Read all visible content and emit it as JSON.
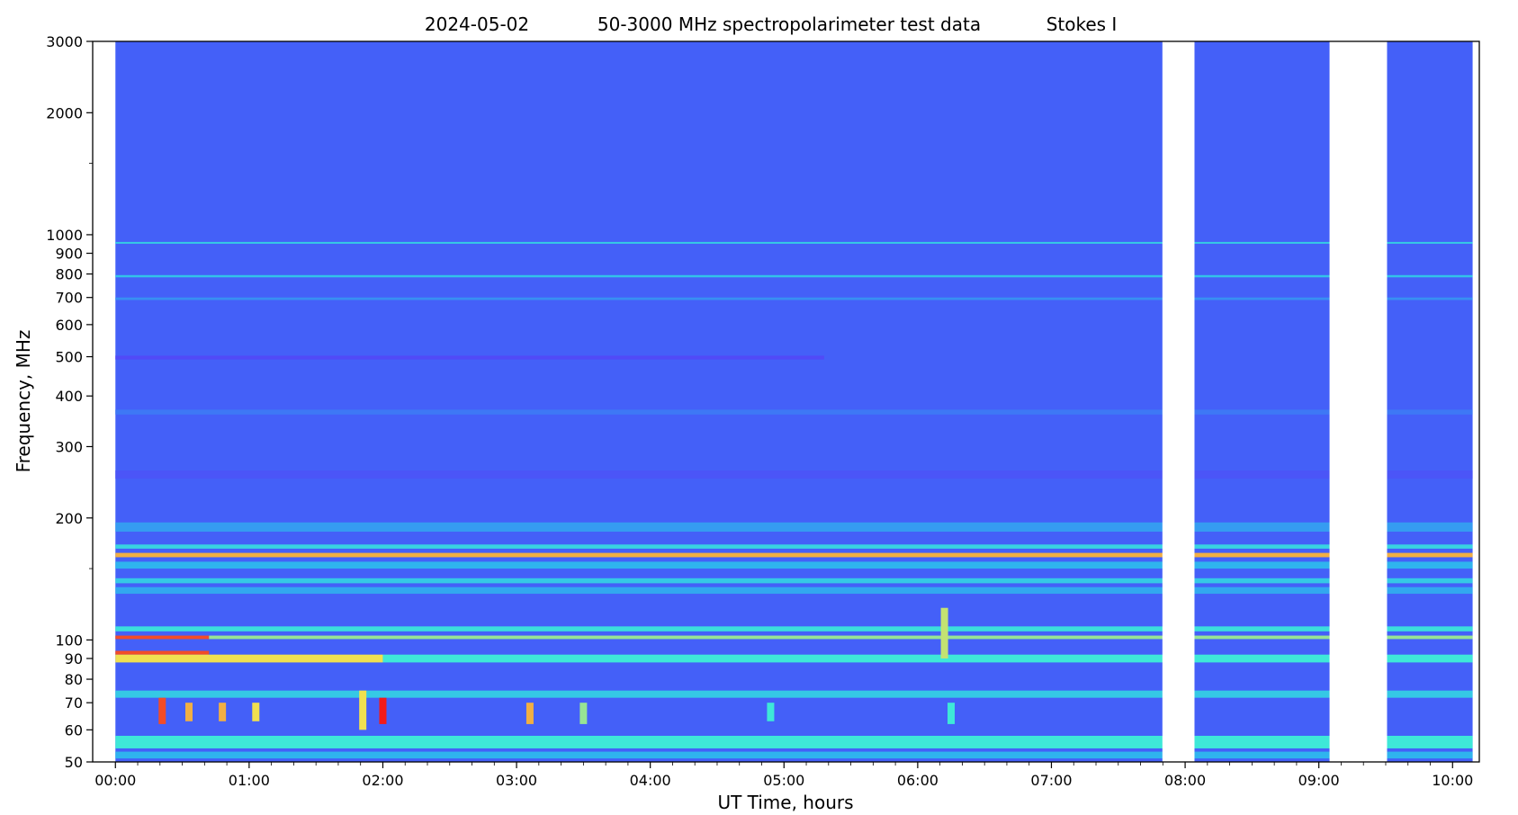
{
  "chart_data": {
    "type": "heatmap",
    "title_parts": [
      "2024-05-02",
      "50-3000 MHz spectropolarimeter test data",
      "Stokes I"
    ],
    "xlabel": "UT Time, hours",
    "ylabel": "Frequency, MHz",
    "x_range_hours": [
      -0.17,
      10.2
    ],
    "x_data_range_hours": [
      0.0,
      10.15
    ],
    "y_range_mhz": [
      50,
      3000
    ],
    "y_scale": "log",
    "x_ticks": [
      {
        "value": 0,
        "label": "00:00"
      },
      {
        "value": 1,
        "label": "01:00"
      },
      {
        "value": 2,
        "label": "02:00"
      },
      {
        "value": 3,
        "label": "03:00"
      },
      {
        "value": 4,
        "label": "04:00"
      },
      {
        "value": 5,
        "label": "05:00"
      },
      {
        "value": 6,
        "label": "06:00"
      },
      {
        "value": 7,
        "label": "07:00"
      },
      {
        "value": 8,
        "label": "08:00"
      },
      {
        "value": 9,
        "label": "09:00"
      },
      {
        "value": 10,
        "label": "10:00"
      }
    ],
    "y_ticks": [
      {
        "value": 50,
        "label": "50"
      },
      {
        "value": 60,
        "label": "60"
      },
      {
        "value": 70,
        "label": "70"
      },
      {
        "value": 80,
        "label": "80"
      },
      {
        "value": 90,
        "label": "90"
      },
      {
        "value": 100,
        "label": "100"
      },
      {
        "value": 200,
        "label": "200"
      },
      {
        "value": 300,
        "label": "300"
      },
      {
        "value": 400,
        "label": "400"
      },
      {
        "value": 500,
        "label": "500"
      },
      {
        "value": 600,
        "label": "600"
      },
      {
        "value": 700,
        "label": "700"
      },
      {
        "value": 800,
        "label": "800"
      },
      {
        "value": 900,
        "label": "900"
      },
      {
        "value": 1000,
        "label": "1000"
      },
      {
        "value": 2000,
        "label": "2000"
      },
      {
        "value": 3000,
        "label": "3000"
      }
    ],
    "y_minor_ticks": [
      150,
      1500
    ],
    "data_gaps_hours": [
      [
        7.83,
        8.07
      ],
      [
        9.08,
        9.51
      ]
    ],
    "colormap": "rainbow",
    "colors": {
      "background": "#4460f8",
      "low": "#5a3cf6",
      "mid": "#2fb4ee",
      "high_cyan": "#3ee8d8",
      "yellow": "#f0e050",
      "red": "#f21a1a"
    },
    "bands": [
      {
        "f_low": 950,
        "f_high": 960,
        "intensity": 0.45,
        "t_start": 0.0,
        "t_end": 10.15
      },
      {
        "f_low": 785,
        "f_high": 795,
        "intensity": 0.42,
        "t_start": 0.0,
        "t_end": 10.15
      },
      {
        "f_low": 690,
        "f_high": 700,
        "intensity": 0.2,
        "t_start": 0.0,
        "t_end": 10.15
      },
      {
        "f_low": 492,
        "f_high": 503,
        "intensity": -0.6,
        "t_start": 0.0,
        "t_end": 5.3
      },
      {
        "f_low": 360,
        "f_high": 370,
        "intensity": 0.1,
        "t_start": 0.0,
        "t_end": 10.15
      },
      {
        "f_low": 250,
        "f_high": 262,
        "intensity": -0.3,
        "t_start": 0.0,
        "t_end": 10.15
      },
      {
        "f_low": 185,
        "f_high": 195,
        "intensity": 0.25,
        "t_start": 0.0,
        "t_end": 10.15
      },
      {
        "f_low": 168,
        "f_high": 172,
        "intensity": 0.5,
        "t_start": 0.0,
        "t_end": 10.15
      },
      {
        "f_low": 160,
        "f_high": 164,
        "intensity": 0.85,
        "t_start": 0.0,
        "t_end": 10.15
      },
      {
        "f_low": 150,
        "f_high": 156,
        "intensity": 0.35,
        "t_start": 0.0,
        "t_end": 10.15
      },
      {
        "f_low": 138,
        "f_high": 142,
        "intensity": 0.45,
        "t_start": 0.0,
        "t_end": 10.15
      },
      {
        "f_low": 130,
        "f_high": 135,
        "intensity": 0.3,
        "t_start": 0.0,
        "t_end": 10.15
      },
      {
        "f_low": 105,
        "f_high": 108,
        "intensity": 0.55,
        "t_start": 0.0,
        "t_end": 10.15
      },
      {
        "f_low": 100.5,
        "f_high": 102.5,
        "intensity": 0.95,
        "t_start": 0.0,
        "t_end": 0.7
      },
      {
        "f_low": 100.5,
        "f_high": 102.5,
        "intensity": 0.7,
        "t_start": 0.7,
        "t_end": 10.15
      },
      {
        "f_low": 92,
        "f_high": 94,
        "intensity": 0.95,
        "t_start": 0.0,
        "t_end": 0.7
      },
      {
        "f_low": 88,
        "f_high": 92,
        "intensity": 0.8,
        "t_start": 0.0,
        "t_end": 2.0
      },
      {
        "f_low": 88,
        "f_high": 92,
        "intensity": 0.6,
        "t_start": 2.0,
        "t_end": 10.15
      },
      {
        "f_low": 72,
        "f_high": 75,
        "intensity": 0.45,
        "t_start": 0.0,
        "t_end": 10.15
      },
      {
        "f_low": 54,
        "f_high": 58,
        "intensity": 0.6,
        "t_start": 0.0,
        "t_end": 10.15
      },
      {
        "f_low": 51,
        "f_high": 53,
        "intensity": 0.35,
        "t_start": 0.0,
        "t_end": 10.15
      }
    ],
    "bursts": [
      {
        "t": 0.35,
        "f_low": 62,
        "f_high": 72,
        "intensity": 0.95
      },
      {
        "t": 0.55,
        "f_low": 63,
        "f_high": 70,
        "intensity": 0.85
      },
      {
        "t": 0.8,
        "f_low": 63,
        "f_high": 70,
        "intensity": 0.85
      },
      {
        "t": 1.05,
        "f_low": 63,
        "f_high": 70,
        "intensity": 0.8
      },
      {
        "t": 1.85,
        "f_low": 60,
        "f_high": 75,
        "intensity": 0.8
      },
      {
        "t": 2.0,
        "f_low": 62,
        "f_high": 72,
        "intensity": 1.0
      },
      {
        "t": 3.1,
        "f_low": 62,
        "f_high": 70,
        "intensity": 0.85
      },
      {
        "t": 3.5,
        "f_low": 62,
        "f_high": 70,
        "intensity": 0.7
      },
      {
        "t": 4.9,
        "f_low": 63,
        "f_high": 70,
        "intensity": 0.6
      },
      {
        "t": 6.2,
        "f_low": 90,
        "f_high": 120,
        "intensity": 0.75
      },
      {
        "t": 6.25,
        "f_low": 62,
        "f_high": 70,
        "intensity": 0.6
      }
    ]
  }
}
